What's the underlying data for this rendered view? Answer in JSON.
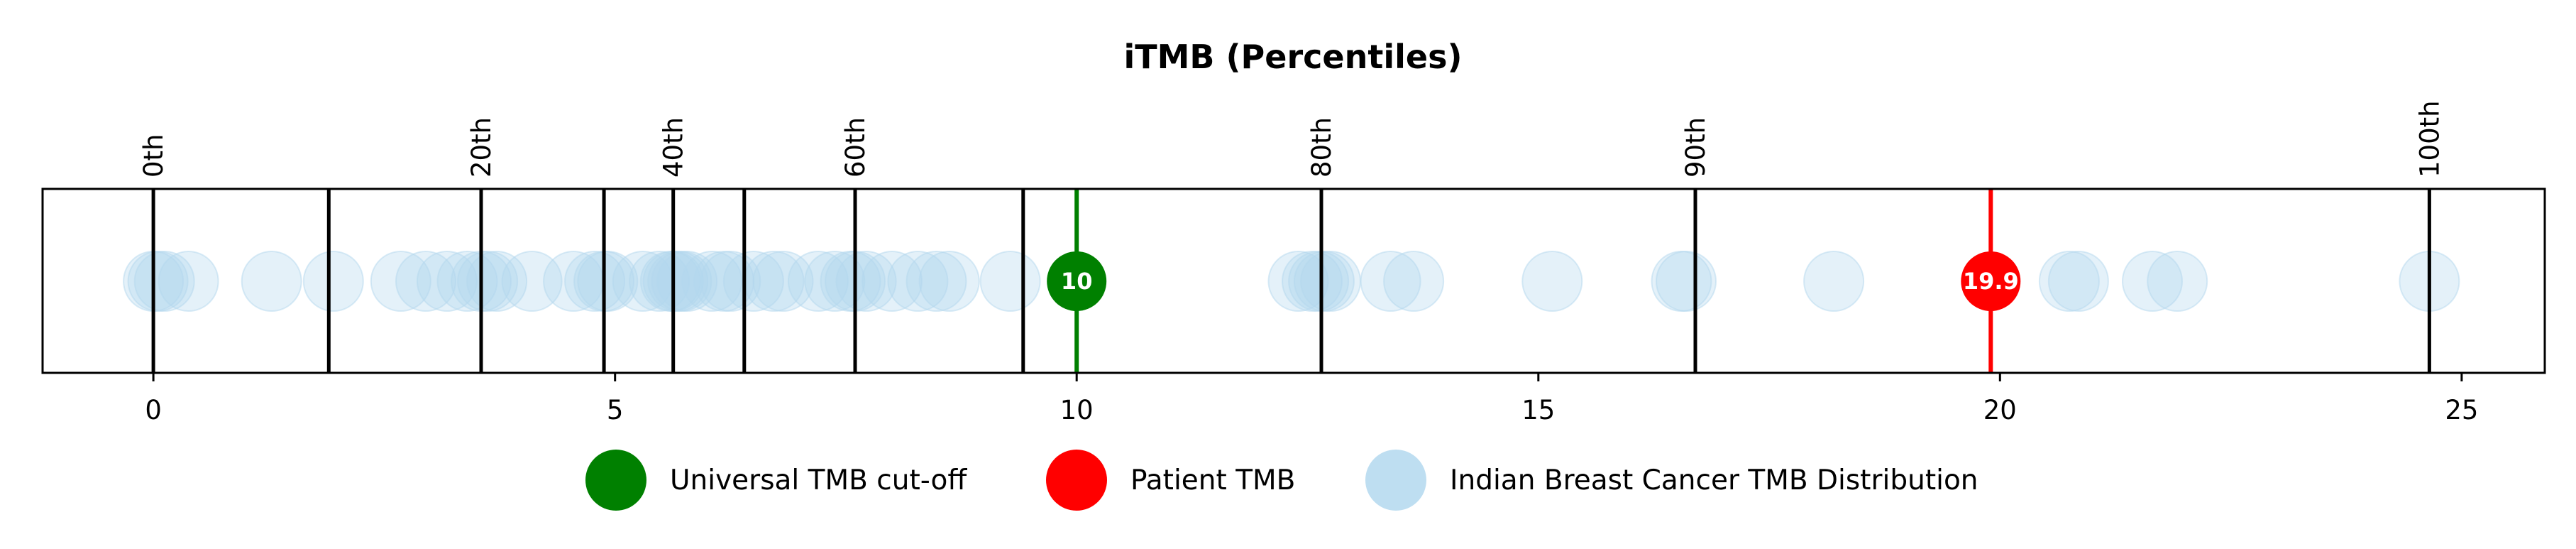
{
  "chart_data": {
    "type": "scatter",
    "title": "iTMB (Percentiles)",
    "xlabel": "",
    "ylabel": "",
    "xlim": [
      -1.2,
      25.9
    ],
    "x_ticks": [
      0,
      5,
      10,
      15,
      20,
      25
    ],
    "x_tick_labels": [
      "0",
      "5",
      "10",
      "15",
      "20",
      "25"
    ],
    "percentile_lines": [
      0,
      1.9,
      3.55,
      4.88,
      5.63,
      6.4,
      7.6,
      9.42,
      12.65,
      16.7,
      24.65
    ],
    "percentile_labels": [
      {
        "x": 0,
        "label": "0th"
      },
      {
        "x": 3.55,
        "label": "20th"
      },
      {
        "x": 5.63,
        "label": "40th"
      },
      {
        "x": 7.6,
        "label": "60th"
      },
      {
        "x": 12.65,
        "label": "80th"
      },
      {
        "x": 16.7,
        "label": "90th"
      },
      {
        "x": 24.65,
        "label": "100th"
      }
    ],
    "series": [
      {
        "name": "Indian Breast Cancer TMB Distribution",
        "color": "#b3d8ee",
        "values": [
          0,
          0.05,
          0.12,
          0.38,
          1.28,
          1.95,
          2.68,
          2.95,
          3.18,
          3.4,
          3.55,
          3.62,
          3.72,
          4.1,
          4.55,
          4.78,
          4.88,
          4.92,
          5.3,
          5.48,
          5.6,
          5.63,
          5.68,
          5.72,
          5.78,
          6.05,
          6.18,
          6.25,
          6.5,
          6.72,
          6.82,
          7.2,
          7.38,
          7.55,
          7.6,
          7.72,
          8.0,
          8.28,
          8.48,
          8.62,
          9.28,
          12.4,
          12.55,
          12.62,
          12.68,
          12.75,
          13.4,
          13.65,
          15.15,
          16.55,
          16.6,
          18.2,
          20.75,
          20.85,
          21.65,
          21.92,
          24.65
        ]
      },
      {
        "name": "Universal TMB cut-off",
        "color": "#008000",
        "values": [
          10
        ],
        "label": "10"
      },
      {
        "name": "Patient TMB",
        "color": "#ff0000",
        "values": [
          19.9
        ],
        "label": "19.9"
      }
    ]
  }
}
